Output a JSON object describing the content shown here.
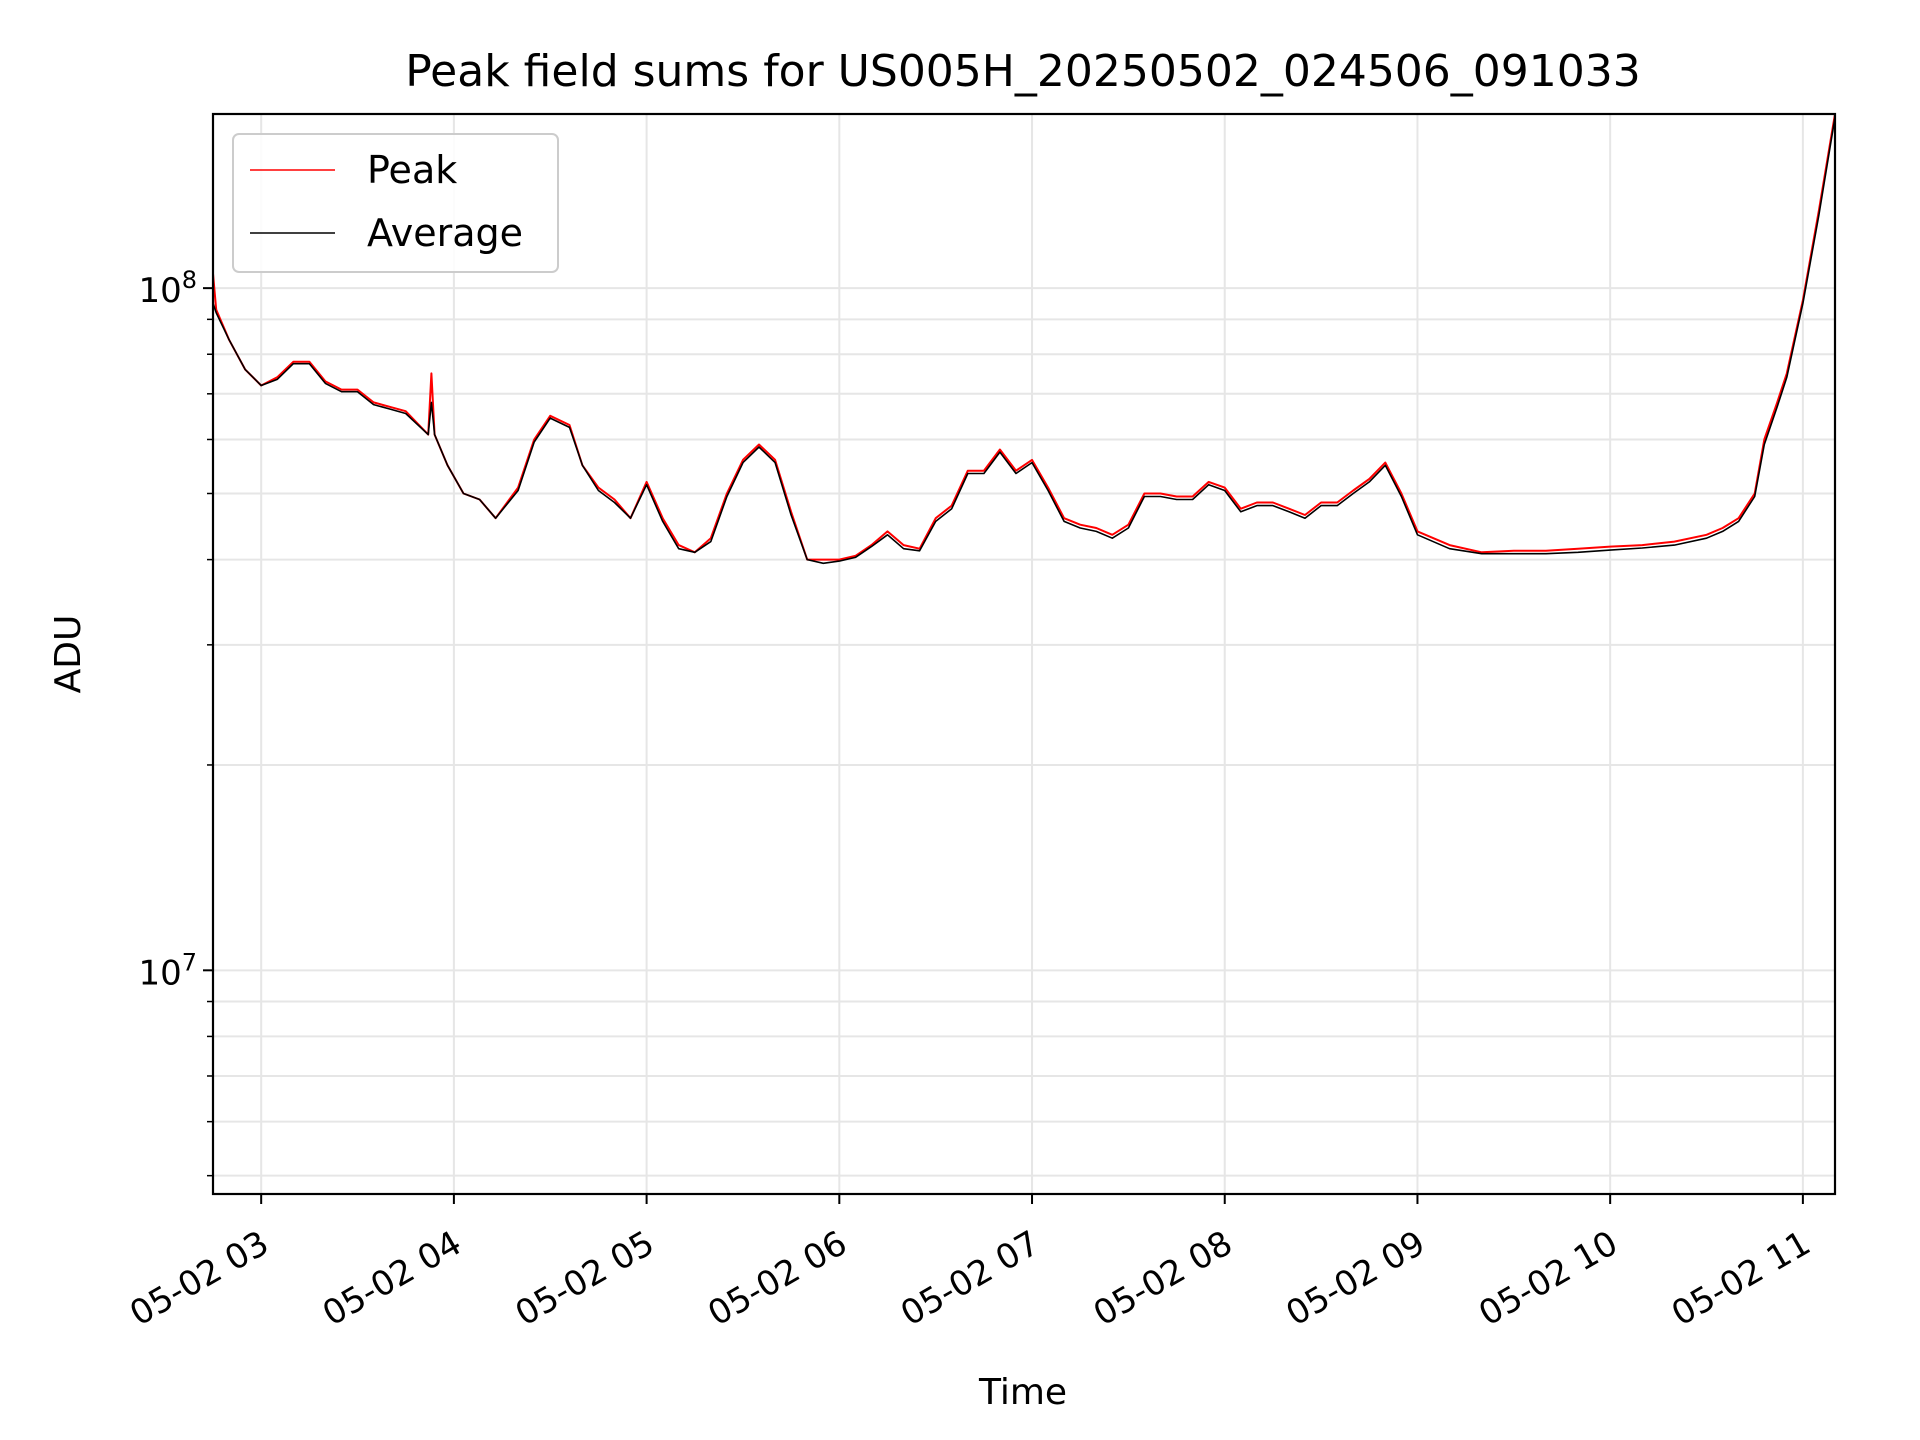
{
  "chart_data": {
    "type": "line",
    "title": "Peak field sums for US005H_20250502_024506_091033",
    "xlabel": "Time",
    "ylabel": "ADU",
    "yscale": "log",
    "xlim": [
      "05-02 02:45",
      "05-02 11:10"
    ],
    "ylim": [
      4700000,
      180000000
    ],
    "grid": true,
    "legend_position": "top-left",
    "x_tick_labels": [
      "05-02 03",
      "05-02 04",
      "05-02 05",
      "05-02 06",
      "05-02 07",
      "05-02 08",
      "05-02 09",
      "05-02 10",
      "05-02 11"
    ],
    "y_tick_labels": [
      {
        "base": "10",
        "exp": "7",
        "value": 10000000
      },
      {
        "base": "10",
        "exp": "8",
        "value": 100000000
      }
    ],
    "colors": {
      "peak": "#ff0000",
      "average": "#000000",
      "grid": "#e6e6e6"
    },
    "series": [
      {
        "name": "Peak",
        "color": "#ff0000",
        "x": [
          "05-02 02:45",
          "05-02 02:46",
          "05-02 02:50",
          "05-02 02:55",
          "05-02 03:00",
          "05-02 03:05",
          "05-02 03:10",
          "05-02 03:15",
          "05-02 03:20",
          "05-02 03:25",
          "05-02 03:30",
          "05-02 03:35",
          "05-02 03:40",
          "05-02 03:45",
          "05-02 03:52",
          "05-02 03:53",
          "05-02 03:54",
          "05-02 03:58",
          "05-02 04:03",
          "05-02 04:08",
          "05-02 04:13",
          "05-02 04:20",
          "05-02 04:25",
          "05-02 04:30",
          "05-02 04:36",
          "05-02 04:40",
          "05-02 04:45",
          "05-02 04:50",
          "05-02 04:55",
          "05-02 05:00",
          "05-02 05:05",
          "05-02 05:10",
          "05-02 05:15",
          "05-02 05:20",
          "05-02 05:25",
          "05-02 05:30",
          "05-02 05:35",
          "05-02 05:40",
          "05-02 05:45",
          "05-02 05:50",
          "05-02 05:55",
          "05-02 06:00",
          "05-02 06:05",
          "05-02 06:10",
          "05-02 06:15",
          "05-02 06:20",
          "05-02 06:25",
          "05-02 06:30",
          "05-02 06:35",
          "05-02 06:40",
          "05-02 06:45",
          "05-02 06:50",
          "05-02 06:55",
          "05-02 07:00",
          "05-02 07:05",
          "05-02 07:10",
          "05-02 07:15",
          "05-02 07:20",
          "05-02 07:25",
          "05-02 07:30",
          "05-02 07:35",
          "05-02 07:40",
          "05-02 07:45",
          "05-02 07:50",
          "05-02 07:55",
          "05-02 08:00",
          "05-02 08:05",
          "05-02 08:10",
          "05-02 08:15",
          "05-02 08:20",
          "05-02 08:25",
          "05-02 08:30",
          "05-02 08:35",
          "05-02 08:40",
          "05-02 08:45",
          "05-02 08:50",
          "05-02 08:55",
          "05-02 09:00",
          "05-02 09:10",
          "05-02 09:20",
          "05-02 09:30",
          "05-02 09:40",
          "05-02 09:50",
          "05-02 10:00",
          "05-02 10:10",
          "05-02 10:20",
          "05-02 10:30",
          "05-02 10:35",
          "05-02 10:40",
          "05-02 10:45",
          "05-02 10:48",
          "05-02 10:52",
          "05-02 10:55",
          "05-02 11:00",
          "05-02 11:05",
          "05-02 11:10"
        ],
        "y": [
          105000000,
          93000000,
          84000000,
          76000000,
          72000000,
          74000000,
          78000000,
          78000000,
          73000000,
          71000000,
          71000000,
          68000000,
          67000000,
          66000000,
          61000000,
          75000000,
          61000000,
          55000000,
          50000000,
          49000000,
          46000000,
          51000000,
          60000000,
          65000000,
          63000000,
          55000000,
          51000000,
          49000000,
          46000000,
          52000000,
          46000000,
          42000000,
          41000000,
          43000000,
          50000000,
          56000000,
          59000000,
          56000000,
          47000000,
          40000000,
          40000000,
          40000000,
          40500000,
          42000000,
          44000000,
          42000000,
          41500000,
          46000000,
          48000000,
          54000000,
          54000000,
          58000000,
          54000000,
          56000000,
          51000000,
          46000000,
          45000000,
          44500000,
          43500000,
          45000000,
          50000000,
          50000000,
          49500000,
          49500000,
          52000000,
          51000000,
          47500000,
          48500000,
          48500000,
          47500000,
          46500000,
          48500000,
          48500000,
          50500000,
          52500000,
          55500000,
          50000000,
          44000000,
          42000000,
          41000000,
          41200000,
          41200000,
          41500000,
          41800000,
          42000000,
          42500000,
          43500000,
          44500000,
          46000000,
          50000000,
          60000000,
          68000000,
          75000000,
          96000000,
          130000000,
          180000000
        ]
      },
      {
        "name": "Average",
        "color": "#000000",
        "x": [
          "05-02 02:45",
          "05-02 02:46",
          "05-02 02:50",
          "05-02 02:55",
          "05-02 03:00",
          "05-02 03:05",
          "05-02 03:10",
          "05-02 03:15",
          "05-02 03:20",
          "05-02 03:25",
          "05-02 03:30",
          "05-02 03:35",
          "05-02 03:40",
          "05-02 03:45",
          "05-02 03:52",
          "05-02 03:53",
          "05-02 03:54",
          "05-02 03:58",
          "05-02 04:03",
          "05-02 04:08",
          "05-02 04:13",
          "05-02 04:20",
          "05-02 04:25",
          "05-02 04:30",
          "05-02 04:36",
          "05-02 04:40",
          "05-02 04:45",
          "05-02 04:50",
          "05-02 04:55",
          "05-02 05:00",
          "05-02 05:05",
          "05-02 05:10",
          "05-02 05:15",
          "05-02 05:20",
          "05-02 05:25",
          "05-02 05:30",
          "05-02 05:35",
          "05-02 05:40",
          "05-02 05:45",
          "05-02 05:50",
          "05-02 05:55",
          "05-02 06:00",
          "05-02 06:05",
          "05-02 06:10",
          "05-02 06:15",
          "05-02 06:20",
          "05-02 06:25",
          "05-02 06:30",
          "05-02 06:35",
          "05-02 06:40",
          "05-02 06:45",
          "05-02 06:50",
          "05-02 06:55",
          "05-02 07:00",
          "05-02 07:05",
          "05-02 07:10",
          "05-02 07:15",
          "05-02 07:20",
          "05-02 07:25",
          "05-02 07:30",
          "05-02 07:35",
          "05-02 07:40",
          "05-02 07:45",
          "05-02 07:50",
          "05-02 07:55",
          "05-02 08:00",
          "05-02 08:05",
          "05-02 08:10",
          "05-02 08:15",
          "05-02 08:20",
          "05-02 08:25",
          "05-02 08:30",
          "05-02 08:35",
          "05-02 08:40",
          "05-02 08:45",
          "05-02 08:50",
          "05-02 08:55",
          "05-02 09:00",
          "05-02 09:10",
          "05-02 09:20",
          "05-02 09:30",
          "05-02 09:40",
          "05-02 09:50",
          "05-02 10:00",
          "05-02 10:10",
          "05-02 10:20",
          "05-02 10:30",
          "05-02 10:35",
          "05-02 10:40",
          "05-02 10:45",
          "05-02 10:48",
          "05-02 10:52",
          "05-02 10:55",
          "05-02 11:00",
          "05-02 11:05",
          "05-02 11:10"
        ],
        "y": [
          95000000,
          92000000,
          84000000,
          76000000,
          72000000,
          73500000,
          77500000,
          77500000,
          72500000,
          70500000,
          70500000,
          67500000,
          66500000,
          65500000,
          61000000,
          68000000,
          61000000,
          55000000,
          50000000,
          49000000,
          46000000,
          50500000,
          59500000,
          64500000,
          62500000,
          55000000,
          50500000,
          48500000,
          46000000,
          51500000,
          45500000,
          41500000,
          41000000,
          42500000,
          49500000,
          55500000,
          58500000,
          55500000,
          46500000,
          40000000,
          39500000,
          39800000,
          40300000,
          41800000,
          43500000,
          41500000,
          41200000,
          45500000,
          47500000,
          53500000,
          53500000,
          57500000,
          53500000,
          55500000,
          50500000,
          45500000,
          44500000,
          44000000,
          43000000,
          44500000,
          49500000,
          49500000,
          49000000,
          49000000,
          51500000,
          50500000,
          47000000,
          48000000,
          48000000,
          47000000,
          46000000,
          48000000,
          48000000,
          50000000,
          52000000,
          55000000,
          49500000,
          43500000,
          41500000,
          40800000,
          40800000,
          40800000,
          41000000,
          41300000,
          41600000,
          42000000,
          43000000,
          44000000,
          45500000,
          49500000,
          59000000,
          67000000,
          74000000,
          95000000,
          128000000,
          178000000
        ]
      }
    ]
  }
}
